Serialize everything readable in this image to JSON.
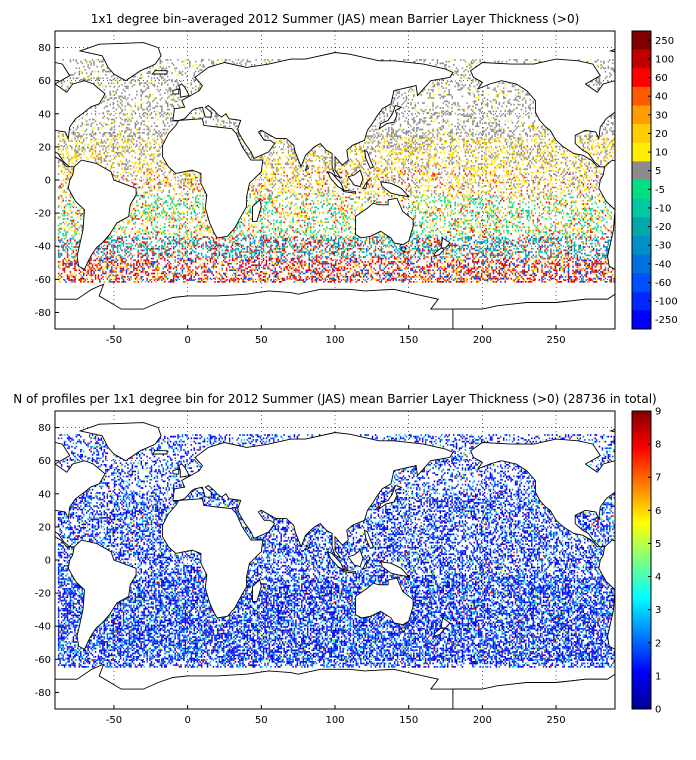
{
  "maps": [
    {
      "title": "1x1 degree bin–averaged 2012 Summer (JAS) mean Barrier Layer Thickness (>0)",
      "x_ticks": [
        "-50",
        "0",
        "50",
        "100",
        "150",
        "200",
        "250"
      ],
      "y_ticks": [
        "80",
        "60",
        "40",
        "20",
        "0",
        "-20",
        "-40",
        "-60",
        "-80"
      ],
      "x_range": [
        -90,
        290
      ],
      "y_range": [
        -90,
        90
      ],
      "colorbar": {
        "labels": [
          "250",
          "100",
          "60",
          "40",
          "30",
          "20",
          "10",
          "5",
          "-5",
          "-10",
          "-20",
          "-30",
          "-40",
          "-60",
          "-100",
          "-250"
        ],
        "colors": [
          "#7f0000",
          "#c00000",
          "#ff0000",
          "#ff5a00",
          "#ff9c00",
          "#ffcc00",
          "#ffee00",
          "#8c8c8c",
          "#00e080",
          "#00c8a0",
          "#00a8a8",
          "#0090c8",
          "#0070e0",
          "#0050ff",
          "#0028ff",
          "#0000ff"
        ]
      }
    },
    {
      "title": "N of profiles per 1x1 degree bin for 2012 Summer (JAS) mean Barrier Layer Thickness (>0) (28736 in total)",
      "x_ticks": [
        "-50",
        "0",
        "50",
        "100",
        "150",
        "200",
        "250"
      ],
      "y_ticks": [
        "80",
        "60",
        "40",
        "20",
        "0",
        "-20",
        "-40",
        "-60",
        "-80"
      ],
      "x_range": [
        -90,
        290
      ],
      "y_range": [
        -90,
        90
      ],
      "colorbar": {
        "labels": [
          "9",
          "8",
          "7",
          "6",
          "5",
          "4",
          "3",
          "2",
          "1",
          "0"
        ],
        "range": [
          0,
          9
        ]
      }
    }
  ]
}
